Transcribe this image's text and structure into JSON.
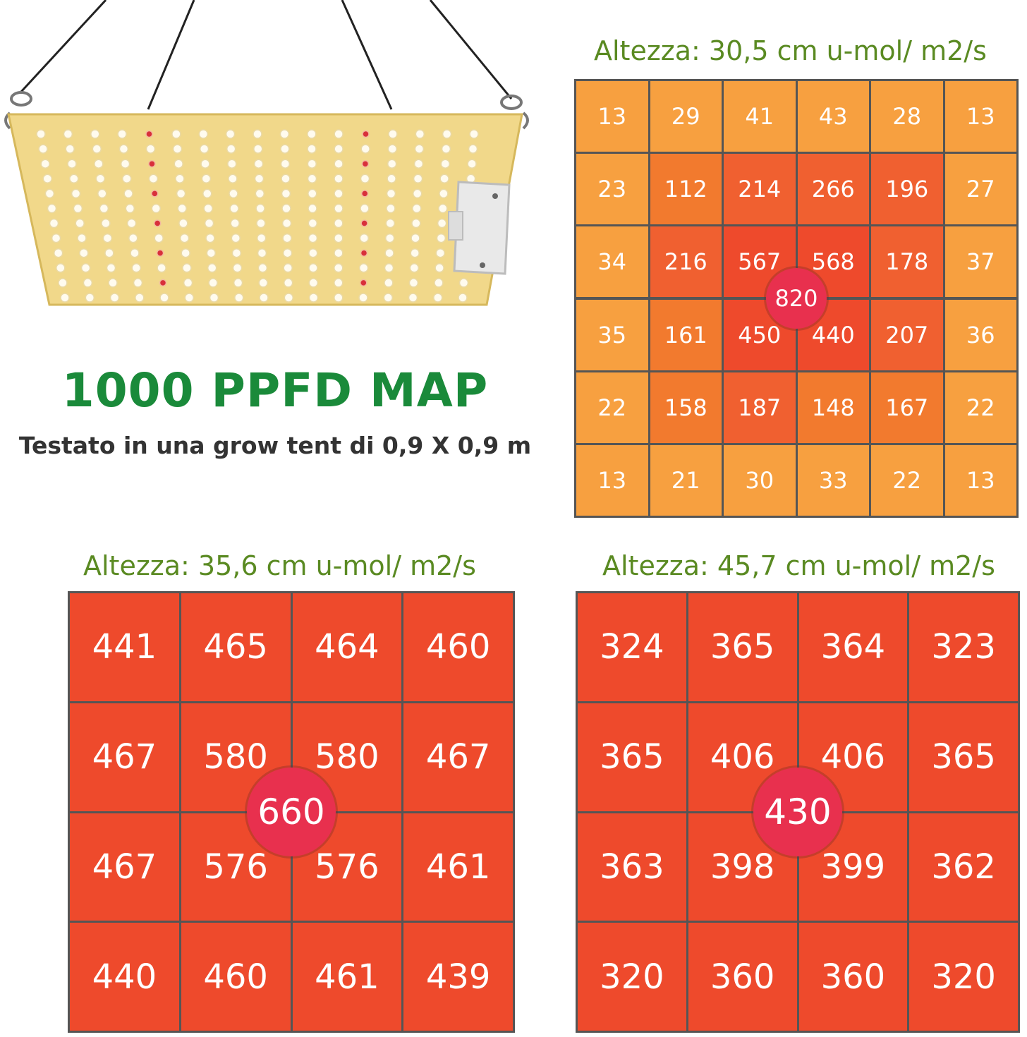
{
  "title": "1000 PPFD MAP",
  "subtitle": "Testato in una grow tent di 0,9 X 0,9 m",
  "colors": {
    "title": "#1a8a3a",
    "subtitle": "#333333",
    "map_title": "#5a8a22",
    "level_low": "#f7a040",
    "level_mid": "#f27a2e",
    "level_high": "#f06030",
    "level_top": "#ee4a2c",
    "center": "#e8304e"
  },
  "chart_data": [
    {
      "type": "heatmap",
      "title": "Altezza: 30,5 cm u-mol/ m2/s",
      "rows": [
        [
          13,
          29,
          41,
          43,
          28,
          13
        ],
        [
          23,
          112,
          214,
          266,
          196,
          27
        ],
        [
          34,
          216,
          567,
          568,
          178,
          37
        ],
        [
          35,
          161,
          450,
          440,
          207,
          36
        ],
        [
          22,
          158,
          187,
          148,
          167,
          22
        ],
        [
          13,
          21,
          30,
          33,
          22,
          13
        ]
      ],
      "center_value": 820
    },
    {
      "type": "heatmap",
      "title": "Altezza: 35,6 cm u-mol/ m2/s",
      "rows": [
        [
          441,
          465,
          464,
          460
        ],
        [
          467,
          580,
          580,
          467
        ],
        [
          467,
          576,
          576,
          461
        ],
        [
          440,
          460,
          461,
          439
        ]
      ],
      "center_value": 660
    },
    {
      "type": "heatmap",
      "title": "Altezza: 45,7 cm u-mol/ m2/s",
      "rows": [
        [
          324,
          365,
          364,
          323
        ],
        [
          365,
          406,
          406,
          365
        ],
        [
          363,
          398,
          399,
          362
        ],
        [
          320,
          360,
          360,
          320
        ]
      ],
      "center_value": 430
    }
  ]
}
